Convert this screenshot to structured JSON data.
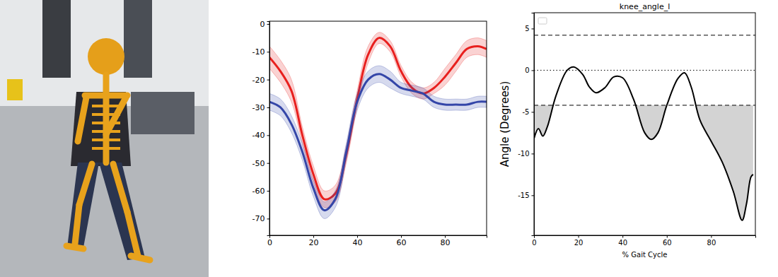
{
  "chart_data": [
    {
      "type": "line",
      "x": [
        0,
        5,
        10,
        15,
        20,
        25,
        30,
        35,
        40,
        45,
        50,
        55,
        60,
        65,
        70,
        75,
        80,
        85,
        90,
        95,
        99
      ],
      "series": [
        {
          "color": "#e8201e",
          "values": [
            -12,
            -17,
            -24,
            -40,
            -54,
            -63,
            -61,
            -47,
            -27,
            -11,
            -5,
            -8,
            -17,
            -23,
            -25,
            -23,
            -19,
            -14,
            -9,
            -8,
            -9
          ],
          "error": [
            4,
            4,
            4,
            3,
            3,
            3,
            3,
            3,
            3,
            3,
            2,
            2,
            2,
            2,
            2,
            2,
            3,
            3,
            3,
            3,
            3
          ]
        },
        {
          "color": "#3446a8",
          "values": [
            -28,
            -30,
            -36,
            -46,
            -59,
            -67,
            -63,
            -46,
            -28,
            -20,
            -18,
            -20,
            -23,
            -24,
            -25,
            -28,
            -29,
            -29,
            -29,
            -28,
            -28
          ],
          "error": [
            3,
            3,
            3,
            3,
            3,
            3,
            3,
            3,
            3,
            3,
            3,
            3,
            2,
            2,
            2,
            2,
            2,
            2,
            2,
            2,
            2
          ]
        }
      ],
      "xlim": [
        0,
        99
      ],
      "xticks": [
        0,
        20,
        40,
        60,
        80
      ],
      "ylim": [
        -76,
        1
      ],
      "yticks": [
        -70,
        -60,
        -50,
        -40,
        -30,
        -20,
        -10,
        0
      ]
    },
    {
      "type": "line",
      "title": "knee_angle_l",
      "x_label": "% Gait Cycle",
      "y_label": "Angle (Degrees)",
      "x": [
        0,
        2,
        4,
        6,
        10,
        15,
        18,
        22,
        25,
        28,
        32,
        36,
        40,
        45,
        50,
        53,
        56,
        60,
        65,
        68,
        71,
        75,
        80,
        85,
        90,
        94,
        96,
        98,
        99
      ],
      "series": [
        {
          "color": "#000000",
          "values": [
            -8.2,
            -7,
            -7.9,
            -6.8,
            -3,
            0,
            0.4,
            -0.5,
            -2,
            -2.7,
            -2.1,
            -0.8,
            -0.9,
            -3.5,
            -7.5,
            -8.3,
            -7.5,
            -4.2,
            -1,
            -0.3,
            -2,
            -6,
            -8.5,
            -11,
            -14.5,
            -18,
            -16,
            -12.8,
            -12.5
          ]
        }
      ],
      "reference_lines": [
        {
          "value": 4.2,
          "line_style": "dashed"
        },
        {
          "value": 0,
          "line_style": "dotted"
        },
        {
          "value": -4.2,
          "line_style": "dashed"
        }
      ],
      "fill_below": -4.2,
      "xlim": [
        0,
        100
      ],
      "xticks": [
        0,
        20,
        40,
        60,
        80
      ],
      "ylim": [
        -19.8,
        6.9
      ],
      "yticks": [
        -15,
        -10,
        -5,
        0,
        5
      ]
    }
  ]
}
